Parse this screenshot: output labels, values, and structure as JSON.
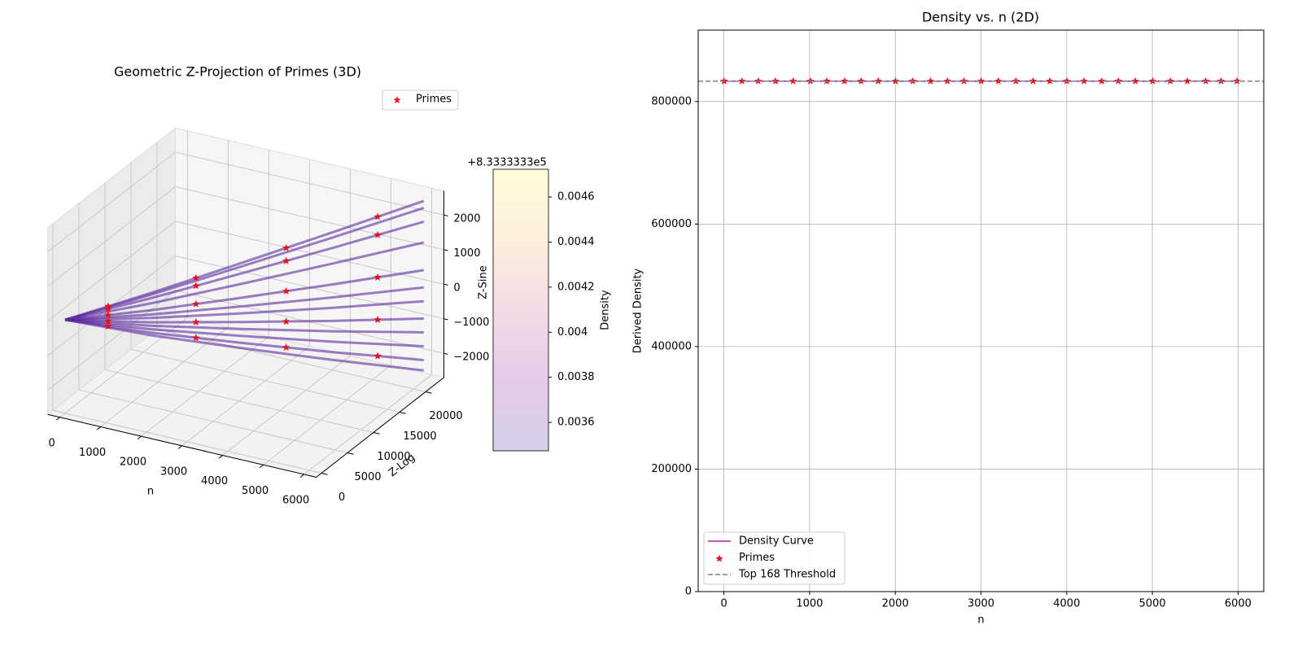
{
  "chart_data": [
    {
      "type": "scatter3d",
      "title": "Geometric Z-Projection of Primes (3D)",
      "xlabel": "n",
      "ylabel": "Z-Log",
      "zlabel": "Z-Sine",
      "xlim": [
        -300,
        6300
      ],
      "ylim": [
        -1000,
        23500
      ],
      "zlim": [
        -2700,
        2700
      ],
      "xticks": [
        0,
        1000,
        2000,
        3000,
        4000,
        5000,
        6000
      ],
      "yticks": [
        0,
        5000,
        10000,
        15000,
        20000
      ],
      "zticks": [
        {
          "value": -2000,
          "label": "−2000"
        },
        {
          "value": -1000,
          "label": "−1000"
        },
        0,
        1000,
        2000
      ],
      "n": [
        0,
        1500,
        3000,
        4500,
        6000
      ],
      "z_log": [
        0,
        4800,
        10300,
        16000,
        22000
      ],
      "line_color": "#5b2a9e",
      "lines": [
        {
          "values": [
            0,
            625,
            1250,
            1875,
            2500
          ]
        },
        {
          "values": [
            0,
            575,
            1150,
            1725,
            2300
          ]
        },
        {
          "values": [
            0,
            475,
            950,
            1425,
            1900
          ]
        },
        {
          "values": [
            0,
            325,
            650,
            975,
            1300
          ]
        },
        {
          "values": [
            0,
            125,
            250,
            375,
            500
          ]
        },
        {
          "values": [
            0,
            0,
            0,
            0,
            0
          ]
        },
        {
          "values": [
            0,
            -100,
            -200,
            -300,
            -400
          ]
        },
        {
          "values": [
            0,
            -225,
            -450,
            -675,
            -900
          ]
        },
        {
          "values": [
            0,
            -325,
            -650,
            -975,
            -1300
          ]
        },
        {
          "values": [
            0,
            -425,
            -850,
            -1275,
            -1700
          ]
        },
        {
          "values": [
            0,
            -525,
            -1050,
            -1575,
            -2100
          ]
        },
        {
          "values": [
            0,
            -600,
            -1200,
            -1800,
            -2400
          ]
        }
      ],
      "primes": {
        "name": "Primes",
        "color": "#e8101a",
        "x": [
          750,
          2250,
          3750,
          5250,
          750,
          2250,
          3750,
          5250,
          750,
          2250,
          3750,
          5250,
          750,
          2250,
          3750,
          5250,
          750,
          2250,
          3750,
          5250
        ],
        "y": [
          2400,
          7550,
          13150,
          19000,
          2400,
          7550,
          13150,
          19000,
          2400,
          7550,
          13150,
          19000,
          2400,
          7550,
          13150,
          19000,
          2400,
          7550,
          13150,
          19000
        ],
        "z": [
          313,
          938,
          1563,
          2188,
          238,
          713,
          1188,
          1663,
          63,
          188,
          313,
          438,
          -113,
          -338,
          -563,
          -788,
          -263,
          -788,
          -1313,
          -1838
        ]
      },
      "colorbar": {
        "label": "Density",
        "offset_label": "+8.3333333e5",
        "lim": [
          0.003474,
          0.004723
        ],
        "ticks": [
          0.0036,
          0.0038,
          0.004,
          0.0042,
          0.0044,
          0.0046
        ],
        "colors": [
          "#d3cfe9",
          "#e5cbe9",
          "#f4dbe4",
          "#fcefdc",
          "#fffbd8"
        ]
      }
    },
    {
      "type": "line",
      "title": "Density vs. n (2D)",
      "xlabel": "n",
      "ylabel": "Derived Density",
      "xlim": [
        -300,
        6300
      ],
      "ylim": [
        0,
        916667
      ],
      "xticks": [
        0,
        1000,
        2000,
        3000,
        4000,
        5000,
        6000
      ],
      "yticks": [
        0,
        200000,
        400000,
        600000,
        800000
      ],
      "grid": true,
      "legend": "lower left",
      "series": [
        {
          "name": "Density Curve",
          "color": "#a020b0",
          "x": [
            1,
            6000
          ],
          "values": [
            833333.33,
            833333.33
          ]
        },
        {
          "name": "Primes",
          "type": "scatter",
          "color": "#e8101a",
          "x": [
            2,
            211,
            401,
            601,
            809,
            1009,
            1201,
            1409,
            1601,
            1801,
            2003,
            2203,
            2411,
            2609,
            2801,
            3001,
            3203,
            3407,
            3607,
            3803,
            4001,
            4201,
            4409,
            4603,
            4801,
            5003,
            5209,
            5407,
            5623,
            5801,
            5987
          ],
          "values": [
            833333.33,
            833333.33,
            833333.33,
            833333.33,
            833333.33,
            833333.33,
            833333.33,
            833333.33,
            833333.33,
            833333.33,
            833333.33,
            833333.33,
            833333.33,
            833333.33,
            833333.33,
            833333.33,
            833333.33,
            833333.33,
            833333.33,
            833333.33,
            833333.33,
            833333.33,
            833333.33,
            833333.33,
            833333.33,
            833333.33,
            833333.33,
            833333.33,
            833333.33,
            833333.33,
            833333.33
          ]
        }
      ],
      "threshold": {
        "name": "Top 168 Threshold",
        "value": 833333.33,
        "color": "#808080"
      }
    }
  ]
}
